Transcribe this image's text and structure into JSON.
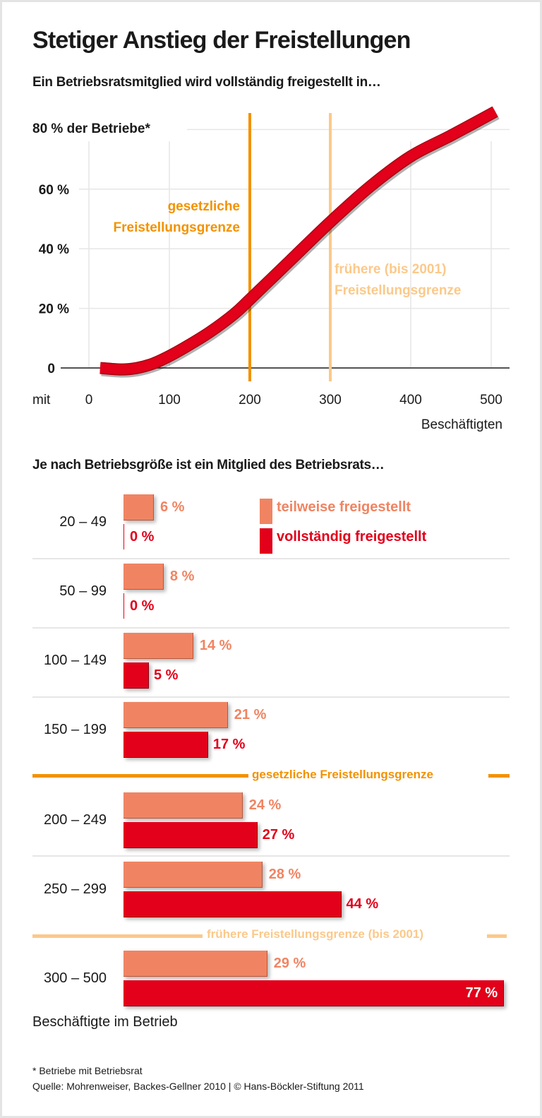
{
  "title": "Stetiger Anstieg der Freistellungen",
  "colors": {
    "teilweise": "#f08462",
    "vollstaendig": "#e2001a",
    "gesetzlich": "#f39200",
    "frueher": "#fbc98a",
    "text": "#1a1a1a"
  },
  "chart_data": [
    {
      "type": "line",
      "title": "Ein Betriebsratsmitglied wird vollständig freigestellt in…",
      "ylabel": "80 % der Betriebe*",
      "xlabel_prefix": "mit",
      "xlabel": "Beschäftigten",
      "xlim": [
        0,
        520
      ],
      "ylim": [
        0,
        80
      ],
      "x_ticks": [
        "0",
        "100",
        "200",
        "300",
        "400",
        "500"
      ],
      "y_ticks": [
        "0",
        "20 %",
        "40 %",
        "60 %"
      ],
      "grid": true,
      "points": [
        [
          14,
          0
        ],
        [
          40,
          -0.5
        ],
        [
          60,
          0
        ],
        [
          80,
          1.5
        ],
        [
          100,
          4
        ],
        [
          120,
          7
        ],
        [
          150,
          12
        ],
        [
          180,
          18
        ],
        [
          200,
          23
        ],
        [
          250,
          36
        ],
        [
          300,
          49
        ],
        [
          350,
          61
        ],
        [
          400,
          71
        ],
        [
          450,
          78
        ],
        [
          505,
          86
        ]
      ],
      "reference_lines": [
        {
          "x": 200,
          "label_line1": "gesetzliche",
          "label_line2": "Freistellungsgrenze"
        },
        {
          "x": 300,
          "label_line1": "frühere (bis 2001)",
          "label_line2": "Freistellungsgrenze"
        }
      ]
    },
    {
      "type": "bar",
      "title": "Je nach Betriebsgröße ist ein Mitglied des Betriebsrats…",
      "xlabel": "Beschäftigte im Betrieb",
      "categories": [
        "20 – 49",
        "50 – 99",
        "100 – 149",
        "150 – 199",
        "200 – 249",
        "250 – 299",
        "300 – 500"
      ],
      "series": [
        {
          "name": "teilweise freigestellt",
          "values": [
            6,
            8,
            14,
            21,
            24,
            28,
            29
          ]
        },
        {
          "name": "vollständig freigestellt",
          "values": [
            0,
            0,
            5,
            17,
            27,
            44,
            77
          ]
        }
      ],
      "unit": "%",
      "legend": "top-right",
      "separators": [
        {
          "after_category": "150 – 199",
          "label": "gesetzliche Freistellungsgrenze"
        },
        {
          "after_category": "250 – 299",
          "label": "frühere Freistellungsgrenze (bis 2001)"
        }
      ]
    }
  ],
  "footnote": "* Betriebe mit Betriebsrat",
  "source": "Quelle: Mohrenweiser, Backes-Gellner 2010 | © Hans-Böckler-Stiftung 2011"
}
